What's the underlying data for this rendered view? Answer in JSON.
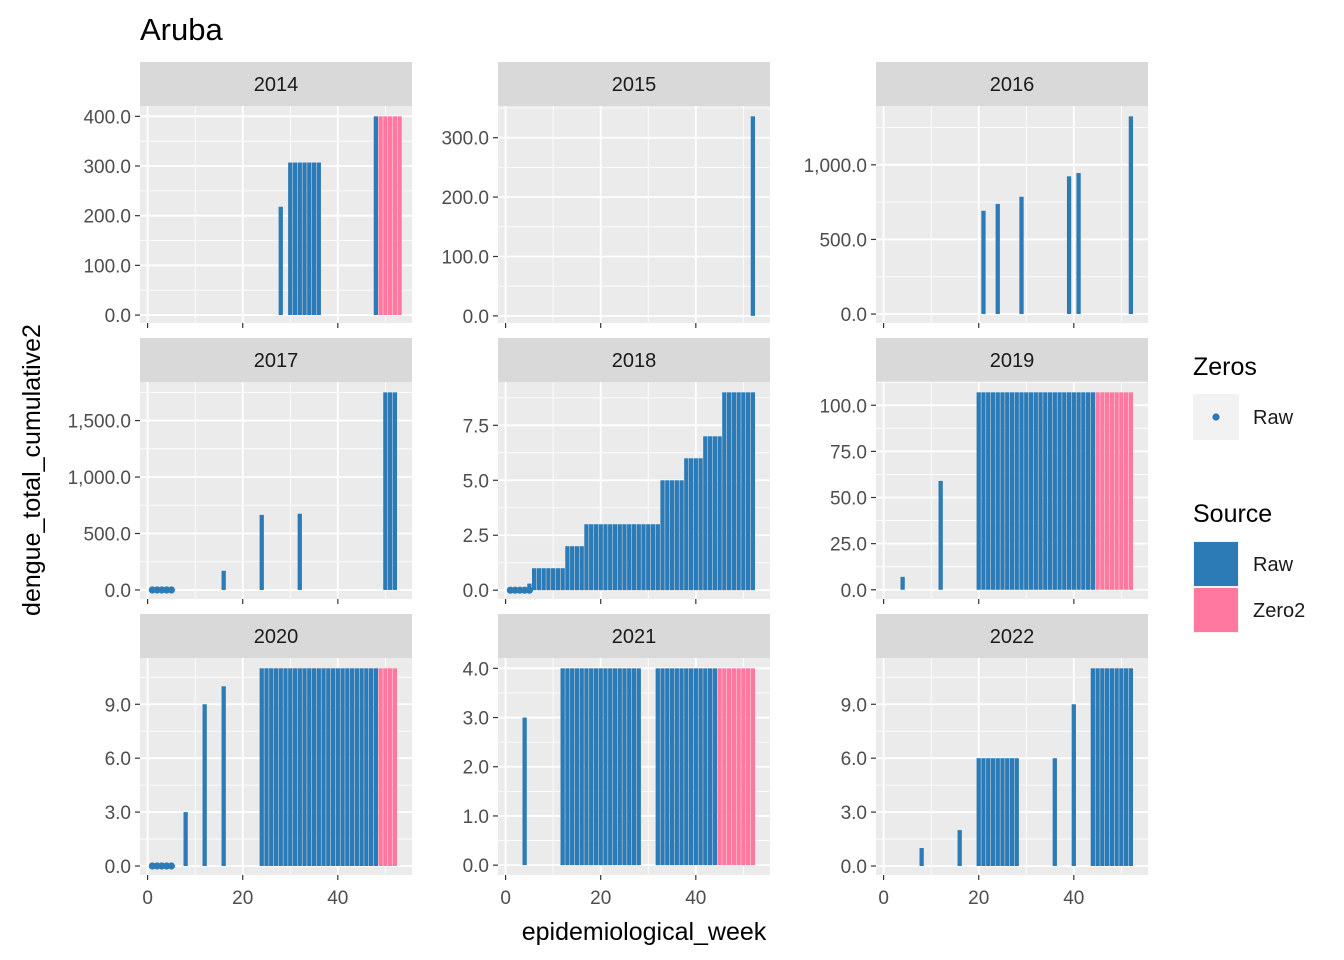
{
  "chart_data": {
    "type": "bar",
    "title": "Aruba",
    "xlabel": "epidemiological_week",
    "ylabel": "dengue_total_cumulative2",
    "xlim": [
      -1.6,
      55.6
    ],
    "x_ticks": [
      0,
      20,
      40
    ],
    "legend": {
      "position": "right",
      "zeros": {
        "title": "Zeros",
        "items": [
          {
            "label": "Raw",
            "color": "#2c7bb6"
          }
        ]
      },
      "source": {
        "title": "Source",
        "items": [
          {
            "label": "Raw",
            "color": "#2c7bb6"
          },
          {
            "label": "Zero2",
            "color": "#ff78a0"
          }
        ]
      }
    },
    "colors": {
      "Raw": "#2c7bb6",
      "Zero2": "#ff78a0",
      "panel_bg": "#ebebeb",
      "strip_bg": "#d9d9d9",
      "grid": "#ffffff"
    },
    "panels": [
      {
        "year": "2014",
        "ylim": [
          -16,
          400
        ],
        "yticks": [
          0,
          100,
          200,
          300,
          400
        ],
        "tick_labels": [
          "0.0",
          "100.0",
          "200.0",
          "300.0",
          "400.0"
        ],
        "bars": [
          {
            "weeks": [
              28
            ],
            "value": 218,
            "source": "Raw"
          },
          {
            "weeks": [
              30,
              31,
              32,
              33,
              34,
              35,
              36
            ],
            "value": 307,
            "source": "Raw"
          },
          {
            "weeks": [
              48
            ],
            "value": 400,
            "source": "Raw"
          },
          {
            "weeks": [
              49,
              50,
              51,
              52,
              53
            ],
            "value": 400,
            "source": "Zero2"
          }
        ],
        "points": []
      },
      {
        "year": "2015",
        "ylim": [
          -12,
          336
        ],
        "yticks": [
          0,
          100,
          200,
          300
        ],
        "tick_labels": [
          "0.0",
          "100.0",
          "200.0",
          "300.0"
        ],
        "bars": [
          {
            "weeks": [
              52
            ],
            "value": 336,
            "source": "Raw"
          }
        ],
        "points": []
      },
      {
        "year": "2016",
        "ylim": [
          -60,
          1325
        ],
        "yticks": [
          0,
          500,
          1000
        ],
        "tick_labels": [
          "0.0",
          "500.0",
          "1,000.0"
        ],
        "bars": [
          {
            "weeks": [
              21
            ],
            "value": 692,
            "source": "Raw"
          },
          {
            "weeks": [
              24
            ],
            "value": 738,
            "source": "Raw"
          },
          {
            "weeks": [
              29
            ],
            "value": 786,
            "source": "Raw"
          },
          {
            "weeks": [
              39
            ],
            "value": 923,
            "source": "Raw"
          },
          {
            "weeks": [
              41
            ],
            "value": 945,
            "source": "Raw"
          },
          {
            "weeks": [
              52
            ],
            "value": 1325,
            "source": "Raw"
          }
        ],
        "points": []
      },
      {
        "year": "2017",
        "ylim": [
          -80,
          1750
        ],
        "yticks": [
          0,
          500,
          1000,
          1500
        ],
        "tick_labels": [
          "0.0",
          "500.0",
          "1,000.0",
          "1,500.0"
        ],
        "bars": [
          {
            "weeks": [
              16
            ],
            "value": 170,
            "source": "Raw"
          },
          {
            "weeks": [
              24
            ],
            "value": 665,
            "source": "Raw"
          },
          {
            "weeks": [
              32
            ],
            "value": 675,
            "source": "Raw"
          },
          {
            "weeks": [
              50,
              51,
              52
            ],
            "value": 1750,
            "source": "Raw"
          }
        ],
        "points": [
          1,
          2,
          3,
          4,
          5
        ]
      },
      {
        "year": "2018",
        "ylim": [
          -0.4,
          9
        ],
        "yticks": [
          0,
          2.5,
          5,
          7.5
        ],
        "tick_labels": [
          "0.0",
          "2.5",
          "5.0",
          "7.5"
        ],
        "bars": [
          {
            "weeks": [
              5
            ],
            "value": 0.3,
            "source": "Raw"
          },
          {
            "weeks": [
              6,
              7,
              8,
              9,
              10,
              11,
              12
            ],
            "value": 1,
            "source": "Raw"
          },
          {
            "weeks": [
              13,
              14,
              15,
              16
            ],
            "value": 2,
            "source": "Raw"
          },
          {
            "weeks": [
              17,
              18,
              19,
              20,
              21,
              22,
              23,
              24,
              25,
              26,
              27,
              28,
              29,
              30,
              31,
              32
            ],
            "value": 3,
            "source": "Raw"
          },
          {
            "weeks": [
              33,
              34,
              35,
              36,
              37
            ],
            "value": 5,
            "source": "Raw"
          },
          {
            "weeks": [
              38,
              39,
              40,
              41
            ],
            "value": 6,
            "source": "Raw"
          },
          {
            "weeks": [
              42,
              43,
              44,
              45
            ],
            "value": 7,
            "source": "Raw"
          },
          {
            "weeks": [
              46,
              47,
              48,
              49,
              50,
              51,
              52
            ],
            "value": 9,
            "source": "Raw"
          }
        ],
        "points": [
          1,
          2,
          3,
          4,
          5
        ]
      },
      {
        "year": "2019",
        "ylim": [
          -5,
          107
        ],
        "yticks": [
          0,
          25,
          50,
          75,
          100
        ],
        "tick_labels": [
          "0.0",
          "25.0",
          "50.0",
          "75.0",
          "100.0"
        ],
        "bars": [
          {
            "weeks": [
              4
            ],
            "value": 7,
            "source": "Raw"
          },
          {
            "weeks": [
              12
            ],
            "value": 59,
            "source": "Raw"
          },
          {
            "weeks": [
              20,
              21,
              22,
              23,
              24,
              25,
              26,
              27,
              28,
              29,
              30,
              31,
              32,
              33,
              34,
              35,
              36,
              37,
              38,
              39,
              40,
              41,
              42,
              43,
              44
            ],
            "value": 107,
            "source": "Raw"
          },
          {
            "weeks": [
              45,
              46,
              47,
              48,
              49,
              50,
              51,
              52
            ],
            "value": 107,
            "source": "Zero2"
          }
        ],
        "points": []
      },
      {
        "year": "2020",
        "ylim": [
          -0.5,
          11
        ],
        "yticks": [
          0,
          3,
          6,
          9
        ],
        "tick_labels": [
          "0.0",
          "3.0",
          "6.0",
          "9.0"
        ],
        "bars": [
          {
            "weeks": [
              8
            ],
            "value": 3,
            "source": "Raw"
          },
          {
            "weeks": [
              12
            ],
            "value": 9,
            "source": "Raw"
          },
          {
            "weeks": [
              16
            ],
            "value": 10,
            "source": "Raw"
          },
          {
            "weeks": [
              24,
              25,
              26,
              27,
              28,
              29,
              30,
              31,
              32,
              33,
              34,
              35,
              36,
              37,
              38,
              39,
              40,
              41,
              42,
              43,
              44,
              45,
              46,
              47,
              48
            ],
            "value": 11,
            "source": "Raw"
          },
          {
            "weeks": [
              49,
              50,
              51,
              52
            ],
            "value": 11,
            "source": "Zero2"
          }
        ],
        "points": [
          1,
          2,
          3,
          4,
          5
        ]
      },
      {
        "year": "2021",
        "ylim": [
          -0.2,
          4
        ],
        "yticks": [
          0,
          1,
          2,
          3,
          4
        ],
        "tick_labels": [
          "0.0",
          "1.0",
          "2.0",
          "3.0",
          "4.0"
        ],
        "bars": [
          {
            "weeks": [
              4
            ],
            "value": 3,
            "source": "Raw"
          },
          {
            "weeks": [
              12,
              13,
              14,
              15,
              16,
              17,
              18,
              19,
              20,
              21,
              22,
              23,
              24,
              25,
              26,
              27,
              28
            ],
            "value": 4,
            "source": "Raw"
          },
          {
            "weeks": [
              32,
              33,
              34,
              35,
              36,
              37,
              38,
              39,
              40,
              41,
              42,
              43,
              44
            ],
            "value": 4,
            "source": "Raw"
          },
          {
            "weeks": [
              45,
              46,
              47,
              48,
              49,
              50,
              51,
              52
            ],
            "value": 4,
            "source": "Zero2"
          }
        ],
        "points": []
      },
      {
        "year": "2022",
        "ylim": [
          -0.5,
          11
        ],
        "yticks": [
          0,
          3,
          6,
          9
        ],
        "tick_labels": [
          "0.0",
          "3.0",
          "6.0",
          "9.0"
        ],
        "bars": [
          {
            "weeks": [
              8
            ],
            "value": 1,
            "source": "Raw"
          },
          {
            "weeks": [
              16
            ],
            "value": 2,
            "source": "Raw"
          },
          {
            "weeks": [
              20,
              21,
              22,
              23,
              24,
              25,
              26,
              27,
              28
            ],
            "value": 6,
            "source": "Raw"
          },
          {
            "weeks": [
              36
            ],
            "value": 6,
            "source": "Raw"
          },
          {
            "weeks": [
              40
            ],
            "value": 9,
            "source": "Raw"
          },
          {
            "weeks": [
              44,
              45,
              46,
              47,
              48,
              49,
              50,
              51,
              52
            ],
            "value": 11,
            "source": "Raw"
          }
        ],
        "points": []
      }
    ]
  }
}
